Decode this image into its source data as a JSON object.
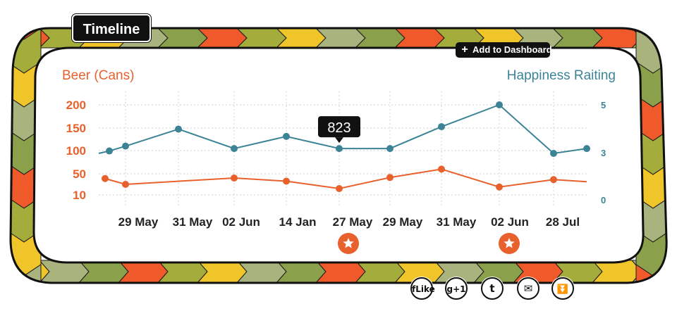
{
  "header": {
    "title": "Timeline",
    "add_button_label": "Add to Dashboard"
  },
  "colors": {
    "beer": "#e8612c",
    "happiness": "#3c8396",
    "tooltip": "#111111",
    "chevrons": [
      "#f05a2a",
      "#a4ac3c",
      "#efc52a",
      "#a9b37e",
      "#8aa04a"
    ]
  },
  "chart_data": {
    "type": "line",
    "x": [
      "",
      "29 May",
      "",
      "31 May",
      "02 Jun",
      "",
      "14 Jan",
      "27 May",
      "29 May",
      "31 May",
      "02 Jun",
      "28 Jul",
      ""
    ],
    "y_left": {
      "label": "Beer (Cans)",
      "ticks": [
        "200",
        "150",
        "100",
        "50",
        "10"
      ],
      "range": [
        10,
        200
      ]
    },
    "y_right": {
      "label": "Happiness Raiting",
      "ticks": [
        "5",
        "3",
        "0"
      ],
      "range": [
        0,
        5
      ]
    },
    "series": [
      {
        "name": "Beer (Cans)",
        "axis": "left",
        "values": [
          null,
          41,
          30,
          null,
          42,
          null,
          36,
          22,
          43,
          60,
          25,
          39,
          35
        ]
      },
      {
        "name": "Happiness Raiting",
        "axis": "right",
        "values": [
          3.0,
          3.1,
          3.3,
          4.0,
          3.2,
          3.7,
          3.2,
          3.2,
          4.1,
          5.0,
          3.0,
          3.2,
          null
        ]
      }
    ],
    "tooltip": {
      "text": "823",
      "point_index": 7
    },
    "star_markers": [
      7,
      10
    ],
    "grid": true
  },
  "share": {
    "facebook_text": "fLike",
    "gplus_text": "g+1",
    "twitter_text": "t",
    "email_text": "✉",
    "more_text": "⏬"
  }
}
